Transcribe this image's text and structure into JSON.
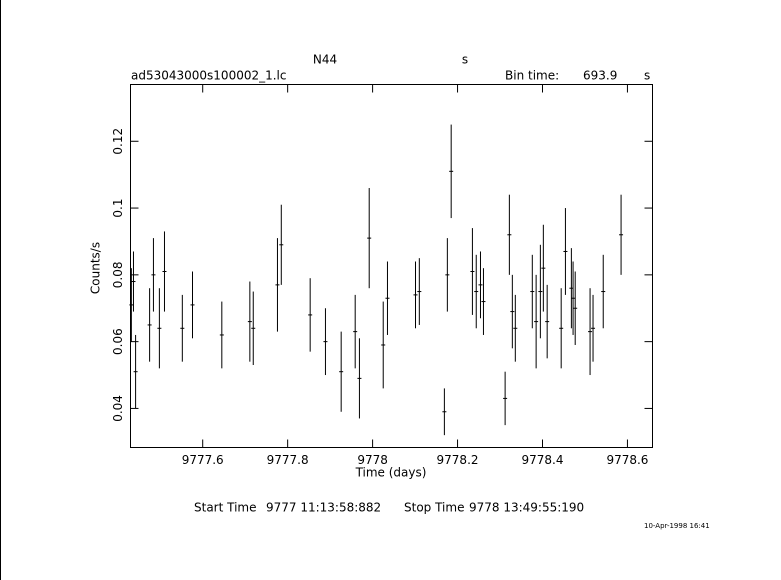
{
  "chart_data": {
    "type": "errorbar",
    "title": "N44",
    "title_unit": "s",
    "file_name": "ad53043000s100002_1.lc",
    "bin_time_label": "Bin time:",
    "bin_time": "693.9",
    "bin_time_unit": "s",
    "xlabel": "Time (days)",
    "ylabel": "Counts/s",
    "start_label": "Start Time",
    "start_time": "9777 11:13:58:882",
    "stop_label": "Stop Time",
    "stop_time": "9778 13:49:55:190",
    "date_stamp": "10-Apr-1998 16:41",
    "xlim": [
      9777.43,
      9778.659
    ],
    "ylim": [
      0.0283,
      0.137
    ],
    "xticks": [
      9777.6,
      9777.8,
      9778,
      9778.2,
      9778.4,
      9778.6
    ],
    "yticks": [
      0.04,
      0.06,
      0.08,
      0.1,
      0.12
    ],
    "color": "#000000",
    "x": [
      9777.432,
      9777.437,
      9777.442,
      9777.475,
      9777.484,
      9777.498,
      9777.51,
      9777.552,
      9777.576,
      9777.645,
      9777.711,
      9777.719,
      9777.776,
      9777.785,
      9777.853,
      9777.889,
      9777.926,
      9777.959,
      9777.969,
      9777.992,
      9778.025,
      9778.035,
      9778.101,
      9778.11,
      9778.169,
      9778.176,
      9778.185,
      9778.235,
      9778.244,
      9778.254,
      9778.261,
      9778.312,
      9778.322,
      9778.329,
      9778.336,
      9778.376,
      9778.385,
      9778.395,
      9778.402,
      9778.411,
      9778.444,
      9778.454,
      9778.468,
      9778.472,
      9778.477,
      9778.512,
      9778.519,
      9778.543,
      9778.585
    ],
    "values": [
      0.071,
      0.078,
      0.051,
      0.065,
      0.08,
      0.064,
      0.081,
      0.064,
      0.071,
      0.062,
      0.066,
      0.064,
      0.077,
      0.089,
      0.068,
      0.06,
      0.051,
      0.063,
      0.049,
      0.091,
      0.059,
      0.073,
      0.074,
      0.075,
      0.039,
      0.08,
      0.111,
      0.081,
      0.075,
      0.077,
      0.072,
      0.043,
      0.092,
      0.069,
      0.064,
      0.075,
      0.066,
      0.075,
      0.082,
      0.066,
      0.064,
      0.087,
      0.076,
      0.073,
      0.07,
      0.063,
      0.064,
      0.075,
      0.092
    ],
    "errors": [
      0.011,
      0.009,
      0.011,
      0.011,
      0.011,
      0.012,
      0.012,
      0.01,
      0.01,
      0.01,
      0.012,
      0.011,
      0.014,
      0.012,
      0.011,
      0.01,
      0.012,
      0.011,
      0.012,
      0.015,
      0.013,
      0.011,
      0.01,
      0.01,
      0.007,
      0.011,
      0.014,
      0.013,
      0.011,
      0.01,
      0.01,
      0.008,
      0.012,
      0.011,
      0.01,
      0.011,
      0.014,
      0.014,
      0.013,
      0.011,
      0.012,
      0.013,
      0.012,
      0.011,
      0.011,
      0.013,
      0.01,
      0.011,
      0.012
    ]
  }
}
